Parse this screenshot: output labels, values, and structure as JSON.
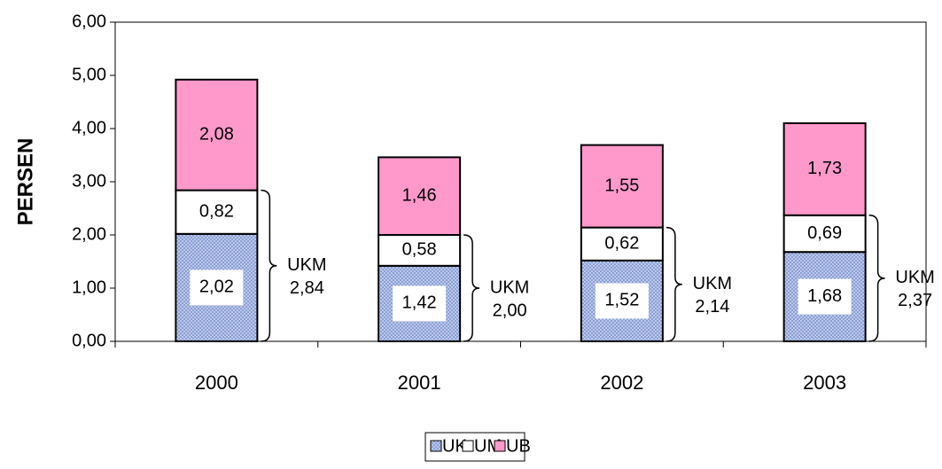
{
  "chart_data": {
    "type": "stacked_bar",
    "y_label": "PERSEN",
    "categories": [
      "2000",
      "2001",
      "2002",
      "2003"
    ],
    "series": [
      {
        "name": "UK",
        "color": "#9fb3e6",
        "values": [
          2.02,
          1.42,
          1.52,
          1.68
        ],
        "value_labels": [
          "2,02",
          "1,42",
          "1,52",
          "1,68"
        ]
      },
      {
        "name": "UM",
        "color": "#ffffff",
        "values": [
          0.82,
          0.58,
          0.62,
          0.69
        ],
        "value_labels": [
          "0,82",
          "0,58",
          "0,62",
          "0,69"
        ]
      },
      {
        "name": "UB",
        "color": "#ff99cc",
        "values": [
          2.08,
          1.46,
          1.55,
          1.73
        ],
        "value_labels": [
          "2,08",
          "1,46",
          "1,55",
          "1,73"
        ]
      }
    ],
    "annotations": [
      {
        "label": "UKM",
        "value": 2.84,
        "value_label": "2,84"
      },
      {
        "label": "UKM",
        "value": 2.0,
        "value_label": "2,00"
      },
      {
        "label": "UKM",
        "value": 2.14,
        "value_label": "2,14"
      },
      {
        "label": "UKM",
        "value": 2.37,
        "value_label": "2,37"
      }
    ],
    "ylim": [
      0,
      6
    ],
    "yticks": [
      {
        "value": 0,
        "label": "0,00"
      },
      {
        "value": 1,
        "label": "1,00"
      },
      {
        "value": 2,
        "label": "2,00"
      },
      {
        "value": 3,
        "label": "3,00"
      },
      {
        "value": 4,
        "label": "4,00"
      },
      {
        "value": 5,
        "label": "5,00"
      },
      {
        "value": 6,
        "label": "6,00"
      }
    ],
    "legend": "bottom"
  }
}
